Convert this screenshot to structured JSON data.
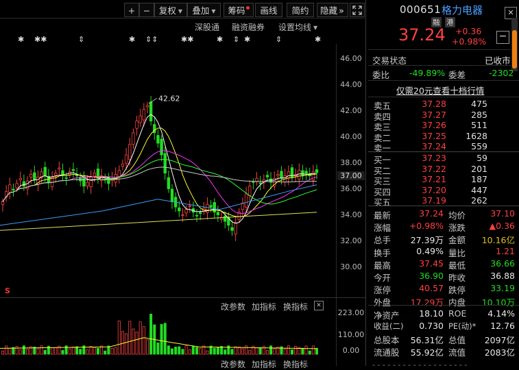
{
  "toolbar": {
    "plus": "+",
    "minus": "−",
    "fuquan": "复权",
    "diejia": "叠加",
    "chouma": "筹码",
    "huaxian": "画线",
    "jianyue": "简约",
    "yincang": "隐藏",
    "more": "»"
  },
  "chart_links": {
    "shengutong": "深股通",
    "rongzi": "融资融券",
    "junxian": "设置均线"
  },
  "y_axis": [
    "46.00",
    "44.00",
    "42.00",
    "40.00",
    "38.00",
    "37.00",
    "36.00",
    "34.00",
    "32.00",
    "30.00"
  ],
  "chart_data": {
    "type": "candlestick",
    "title": "",
    "annotation": "42.62",
    "ylim": [
      29.0,
      47.0
    ],
    "last_price": 37.24
  },
  "volume": {
    "buttons": [
      "改参数",
      "加指标",
      "换指标"
    ],
    "y_axis": [
      "223.00",
      "110.00",
      "0.00"
    ],
    "marker": "S"
  },
  "quote": {
    "code": "000651",
    "name": "格力电器",
    "tag_rong": "融",
    "tag_gang": "港",
    "price": "37.24",
    "change": "+0.36",
    "change_pct": "+0.98%",
    "trade_status_label": "交易状态",
    "trade_status": "已收市",
    "weibi_label": "委比",
    "weibi": "-49.89%",
    "weicha_label": "委差",
    "weicha": "-2302",
    "promo": "仅需20元查看十档行情"
  },
  "orderbook": {
    "asks": [
      {
        "label": "卖五",
        "price": "37.28",
        "vol": "475"
      },
      {
        "label": "卖四",
        "price": "37.27",
        "vol": "285"
      },
      {
        "label": "卖三",
        "price": "37.26",
        "vol": "511"
      },
      {
        "label": "卖二",
        "price": "37.25",
        "vol": "1628"
      },
      {
        "label": "卖一",
        "price": "37.24",
        "vol": "559"
      }
    ],
    "bids": [
      {
        "label": "买一",
        "price": "37.23",
        "vol": "59"
      },
      {
        "label": "买二",
        "price": "37.22",
        "vol": "201"
      },
      {
        "label": "买三",
        "price": "37.21",
        "vol": "187"
      },
      {
        "label": "买四",
        "price": "37.20",
        "vol": "447"
      },
      {
        "label": "买五",
        "price": "37.19",
        "vol": "262"
      }
    ]
  },
  "stats": [
    [
      {
        "k": "最新",
        "v": "37.24",
        "c": "red"
      },
      {
        "k": "均价",
        "v": "37.10",
        "c": "red"
      }
    ],
    [
      {
        "k": "涨幅",
        "v": "+0.98%",
        "c": "red"
      },
      {
        "k": "涨跌",
        "v": "▲0.36",
        "c": "red"
      }
    ],
    [
      {
        "k": "总手",
        "v": "27.39万",
        "c": "white"
      },
      {
        "k": "金额",
        "v": "10.16亿",
        "c": "gold"
      }
    ],
    [
      {
        "k": "换手",
        "v": "0.49%",
        "c": "white"
      },
      {
        "k": "量比",
        "v": "1.21",
        "c": "red"
      }
    ],
    [
      {
        "k": "最高",
        "v": "37.45",
        "c": "red"
      },
      {
        "k": "最低",
        "v": "36.66",
        "c": "green"
      }
    ],
    [
      {
        "k": "今开",
        "v": "36.90",
        "c": "green"
      },
      {
        "k": "昨收",
        "v": "36.88",
        "c": "white"
      }
    ],
    [
      {
        "k": "涨停",
        "v": "40.57",
        "c": "red"
      },
      {
        "k": "跌停",
        "v": "33.19",
        "c": "green"
      }
    ],
    [
      {
        "k": "外盘",
        "v": "17.29万",
        "c": "red"
      },
      {
        "k": "内盘",
        "v": "10.10万",
        "c": "green"
      }
    ],
    [
      {
        "k": "净资产",
        "v": "18.10",
        "c": "white"
      },
      {
        "k": "ROE",
        "v": "4.14%",
        "c": "white"
      }
    ],
    [
      {
        "k": "收益(二)",
        "v": "0.730",
        "c": "white"
      },
      {
        "k": "PE(动)*",
        "v": "12.76",
        "c": "white"
      }
    ],
    [
      {
        "k": "总股本",
        "v": "56.31亿",
        "c": "white"
      },
      {
        "k": "总值",
        "v": "2097亿",
        "c": "white"
      }
    ],
    [
      {
        "k": "流通股",
        "v": "55.92亿",
        "c": "white"
      },
      {
        "k": "流值",
        "v": "2083亿",
        "c": "white"
      }
    ]
  ],
  "colors": {
    "up": "#ff4040",
    "down": "#22dd22",
    "bg": "#000000"
  }
}
